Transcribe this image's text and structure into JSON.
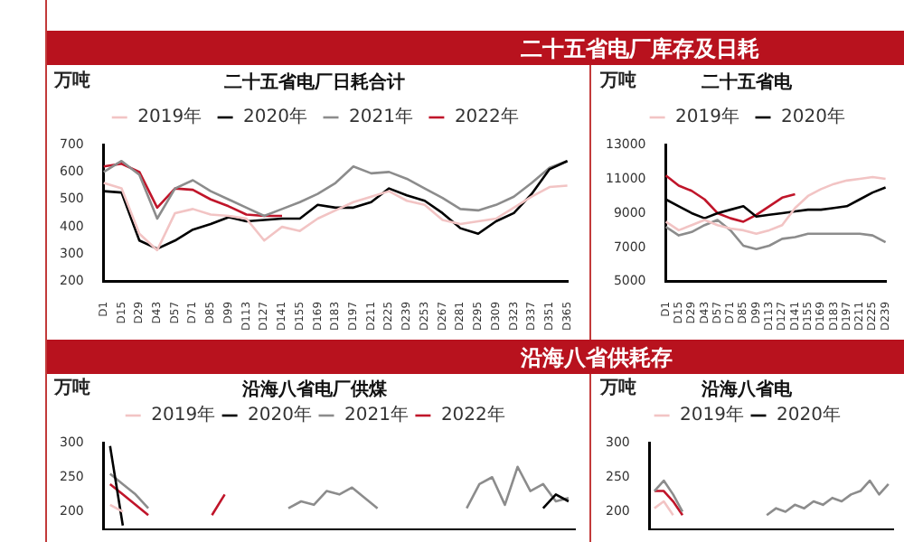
{
  "chart_data": [
    {
      "type": "line",
      "title": "二十五省电厂日耗合计",
      "ylabel": "万吨",
      "annotations": [
        "二十五省电厂库存及日耗"
      ],
      "legend": "top",
      "ylim": [
        200,
        700
      ],
      "yticks": [
        200,
        300,
        400,
        500,
        600,
        700
      ],
      "categories": [
        "D1",
        "D15",
        "D29",
        "D43",
        "D57",
        "D71",
        "D85",
        "D99",
        "D113",
        "D127",
        "D141",
        "D155",
        "D169",
        "D183",
        "D197",
        "D211",
        "D225",
        "D239",
        "D253",
        "D267",
        "D281",
        "D295",
        "D309",
        "D323",
        "D337",
        "D351",
        "D365"
      ],
      "series": [
        {
          "name": "2019年",
          "color": "#f2c4c4",
          "values": [
            560,
            540,
            375,
            315,
            450,
            465,
            445,
            440,
            430,
            350,
            400,
            385,
            430,
            460,
            490,
            510,
            530,
            495,
            480,
            425,
            410,
            420,
            430,
            470,
            510,
            545,
            550
          ]
        },
        {
          "name": "2020年",
          "color": "#000000",
          "values": [
            530,
            525,
            350,
            320,
            350,
            390,
            410,
            435,
            420,
            425,
            430,
            430,
            480,
            470,
            470,
            490,
            540,
            515,
            495,
            450,
            395,
            375,
            420,
            450,
            520,
            610,
            640
          ]
        },
        {
          "name": "2021年",
          "color": "#8c8c8c",
          "values": [
            600,
            640,
            590,
            430,
            540,
            570,
            530,
            500,
            470,
            440,
            465,
            490,
            520,
            560,
            620,
            595,
            600,
            575,
            540,
            505,
            465,
            460,
            480,
            510,
            560,
            615,
            640
          ]
        },
        {
          "name": "2022年",
          "color": "#c0152a",
          "values": [
            620,
            630,
            600,
            470,
            540,
            535,
            500,
            475,
            445,
            440,
            440,
            null,
            null,
            null,
            null,
            null,
            null,
            null,
            null,
            null,
            null,
            null,
            null,
            null,
            null,
            null,
            null
          ]
        }
      ]
    },
    {
      "type": "line",
      "title": "二十五省电",
      "ylabel": "万吨",
      "legend": "top",
      "ylim": [
        5000,
        13000
      ],
      "yticks": [
        5000,
        7000,
        9000,
        11000,
        13000
      ],
      "categories": [
        "D1",
        "D15",
        "D29",
        "D43",
        "D57",
        "D71",
        "D85",
        "D99",
        "D113",
        "D127",
        "D141",
        "D155",
        "D169",
        "D183",
        "D197",
        "D211",
        "D225",
        "D239"
      ],
      "series": [
        {
          "name": "2019年",
          "color": "#f2c4c4",
          "values": [
            8500,
            8000,
            8300,
            8600,
            8300,
            8100,
            8000,
            7800,
            8000,
            8300,
            9300,
            10000,
            10400,
            10700,
            10900,
            11000,
            11100,
            11000
          ]
        },
        {
          "name": "2020年",
          "color": "#000000",
          "values": [
            9800,
            9400,
            9000,
            8700,
            9000,
            9200,
            9400,
            8800,
            8900,
            9000,
            9100,
            9200,
            9200,
            9300,
            9400,
            9800,
            10200,
            10500
          ]
        },
        {
          "color": "#8c8c8c",
          "values": [
            8200,
            7700,
            7900,
            8300,
            8600,
            8000,
            7100,
            6900,
            7100,
            7500,
            7600,
            7800,
            7800,
            7800,
            7800,
            7800,
            7700,
            7300
          ]
        },
        {
          "color": "#c0152a",
          "values": [
            11200,
            10600,
            10300,
            9800,
            9000,
            8700,
            8500,
            8900,
            9400,
            9900,
            10100,
            null,
            null,
            null,
            null,
            null,
            null,
            null
          ]
        }
      ]
    },
    {
      "type": "line",
      "title": "沿海八省电厂供煤",
      "ylabel": "万吨",
      "annotations": [
        "沿海八省供耗存"
      ],
      "legend": "top",
      "tick_labels": "y",
      "ylim": [
        175,
        300
      ],
      "yticks": [
        200,
        250,
        300
      ],
      "categories": [
        null,
        null,
        null,
        null,
        null,
        null,
        null,
        null,
        null,
        null,
        null,
        null,
        null,
        null,
        null,
        null,
        null,
        null,
        null,
        null,
        null,
        null,
        null,
        null,
        null,
        null,
        null,
        null,
        null,
        null,
        null,
        null,
        null,
        null,
        null,
        null,
        null
      ],
      "series": [
        {
          "name": "2019年",
          "color": "#f2c4c4",
          "values": [
            210,
            200,
            null,
            null,
            null,
            null,
            null,
            null,
            null,
            null,
            null,
            null,
            null,
            null,
            null,
            null,
            null,
            null,
            null,
            null,
            null,
            null,
            null,
            null,
            null,
            null,
            null,
            null,
            null,
            null,
            null,
            null,
            null,
            null,
            null,
            null,
            null
          ]
        },
        {
          "name": "2020年",
          "color": "#000000",
          "values": [
            295,
            180,
            null,
            null,
            null,
            null,
            null,
            null,
            null,
            null,
            null,
            null,
            null,
            null,
            null,
            null,
            null,
            null,
            null,
            null,
            null,
            null,
            null,
            null,
            null,
            null,
            null,
            null,
            null,
            null,
            null,
            null,
            null,
            null,
            205,
            225,
            215
          ]
        },
        {
          "name": "2021年",
          "color": "#8c8c8c",
          "values": [
            255,
            240,
            225,
            205,
            null,
            null,
            null,
            null,
            null,
            null,
            null,
            null,
            null,
            null,
            205,
            215,
            210,
            230,
            225,
            235,
            220,
            205,
            null,
            null,
            null,
            null,
            null,
            null,
            205,
            240,
            250,
            210,
            265,
            230,
            240,
            215,
            220
          ]
        },
        {
          "name": "2022年",
          "color": "#c0152a",
          "values": [
            240,
            225,
            210,
            195,
            null,
            null,
            null,
            null,
            195,
            225,
            null,
            null,
            null,
            null,
            null,
            null,
            null,
            null,
            null,
            null,
            null,
            null,
            null,
            null,
            null,
            null,
            null,
            null,
            null,
            null,
            null,
            null,
            null,
            null,
            null,
            null,
            null
          ]
        }
      ]
    },
    {
      "type": "line",
      "title": "沿海八省电",
      "ylabel": "万吨",
      "legend": "top",
      "tick_labels": "y",
      "ylim": [
        175,
        300
      ],
      "yticks": [
        200,
        250,
        300
      ],
      "categories": [
        null,
        null,
        null,
        null,
        null,
        null,
        null,
        null,
        null,
        null,
        null,
        null,
        null,
        null,
        null,
        null,
        null,
        null,
        null,
        null,
        null,
        null,
        null,
        null,
        null,
        null
      ],
      "series": [
        {
          "name": "2019年",
          "color": "#f2c4c4",
          "values": [
            205,
            215,
            195,
            null,
            null,
            null,
            null,
            null,
            null,
            null,
            null,
            null,
            null,
            null,
            null,
            null,
            null,
            null,
            null,
            null,
            null,
            null,
            null,
            null,
            null,
            null
          ]
        },
        {
          "name": "2020年",
          "color": "#000000",
          "values": [
            null,
            null,
            null,
            null,
            null,
            null,
            null,
            null,
            null,
            null,
            null,
            null,
            null,
            null,
            null,
            null,
            null,
            null,
            null,
            null,
            null,
            null,
            null,
            null,
            null,
            null
          ]
        },
        {
          "color": "#8c8c8c",
          "values": [
            230,
            245,
            225,
            200,
            null,
            null,
            null,
            null,
            null,
            null,
            null,
            null,
            195,
            205,
            200,
            210,
            205,
            215,
            210,
            220,
            215,
            225,
            230,
            245,
            225,
            240
          ]
        },
        {
          "color": "#c0152a",
          "values": [
            230,
            230,
            215,
            195,
            null,
            null,
            null,
            null,
            null,
            null,
            null,
            null,
            null,
            null,
            null,
            null,
            null,
            null,
            null,
            null,
            null,
            null,
            null,
            null,
            null,
            null
          ]
        }
      ]
    }
  ]
}
